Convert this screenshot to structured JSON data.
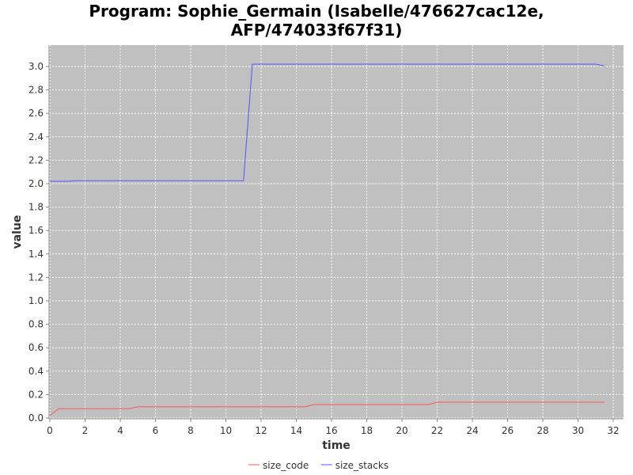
{
  "chart_data": {
    "type": "line",
    "title_line1": "Program: Sophie_Germain (Isabelle/476627cac12e,",
    "title_line2": "AFP/474033f67f31)",
    "xlabel": "time",
    "ylabel": "value",
    "xlim": [
      0,
      33
    ],
    "ylim": [
      0,
      3.12
    ],
    "x_ticks": [
      0,
      2,
      4,
      6,
      8,
      10,
      12,
      14,
      16,
      18,
      20,
      22,
      24,
      26,
      28,
      30,
      32
    ],
    "y_ticks": [
      "0.0",
      "0.2",
      "0.4",
      "0.6",
      "0.8",
      "1.0",
      "1.2",
      "1.4",
      "1.6",
      "1.8",
      "2.0",
      "2.2",
      "2.4",
      "2.6",
      "2.8",
      "3.0"
    ],
    "grid": true,
    "legend_position": "bottom-center",
    "series": [
      {
        "name": "size_code",
        "color": "#ff5555",
        "points": [
          [
            0,
            0.02
          ],
          [
            0.5,
            0.08
          ],
          [
            4.5,
            0.08
          ],
          [
            5,
            0.095
          ],
          [
            14.5,
            0.095
          ],
          [
            15,
            0.115
          ],
          [
            21.5,
            0.115
          ],
          [
            22,
            0.135
          ],
          [
            31.5,
            0.135
          ]
        ]
      },
      {
        "name": "size_stacks",
        "color": "#5555ff",
        "points": [
          [
            0,
            2.02
          ],
          [
            1,
            2.02
          ],
          [
            1.5,
            2.025
          ],
          [
            11,
            2.025
          ],
          [
            11.5,
            3.02
          ],
          [
            31,
            3.02
          ],
          [
            31.5,
            3.005
          ]
        ]
      }
    ]
  }
}
